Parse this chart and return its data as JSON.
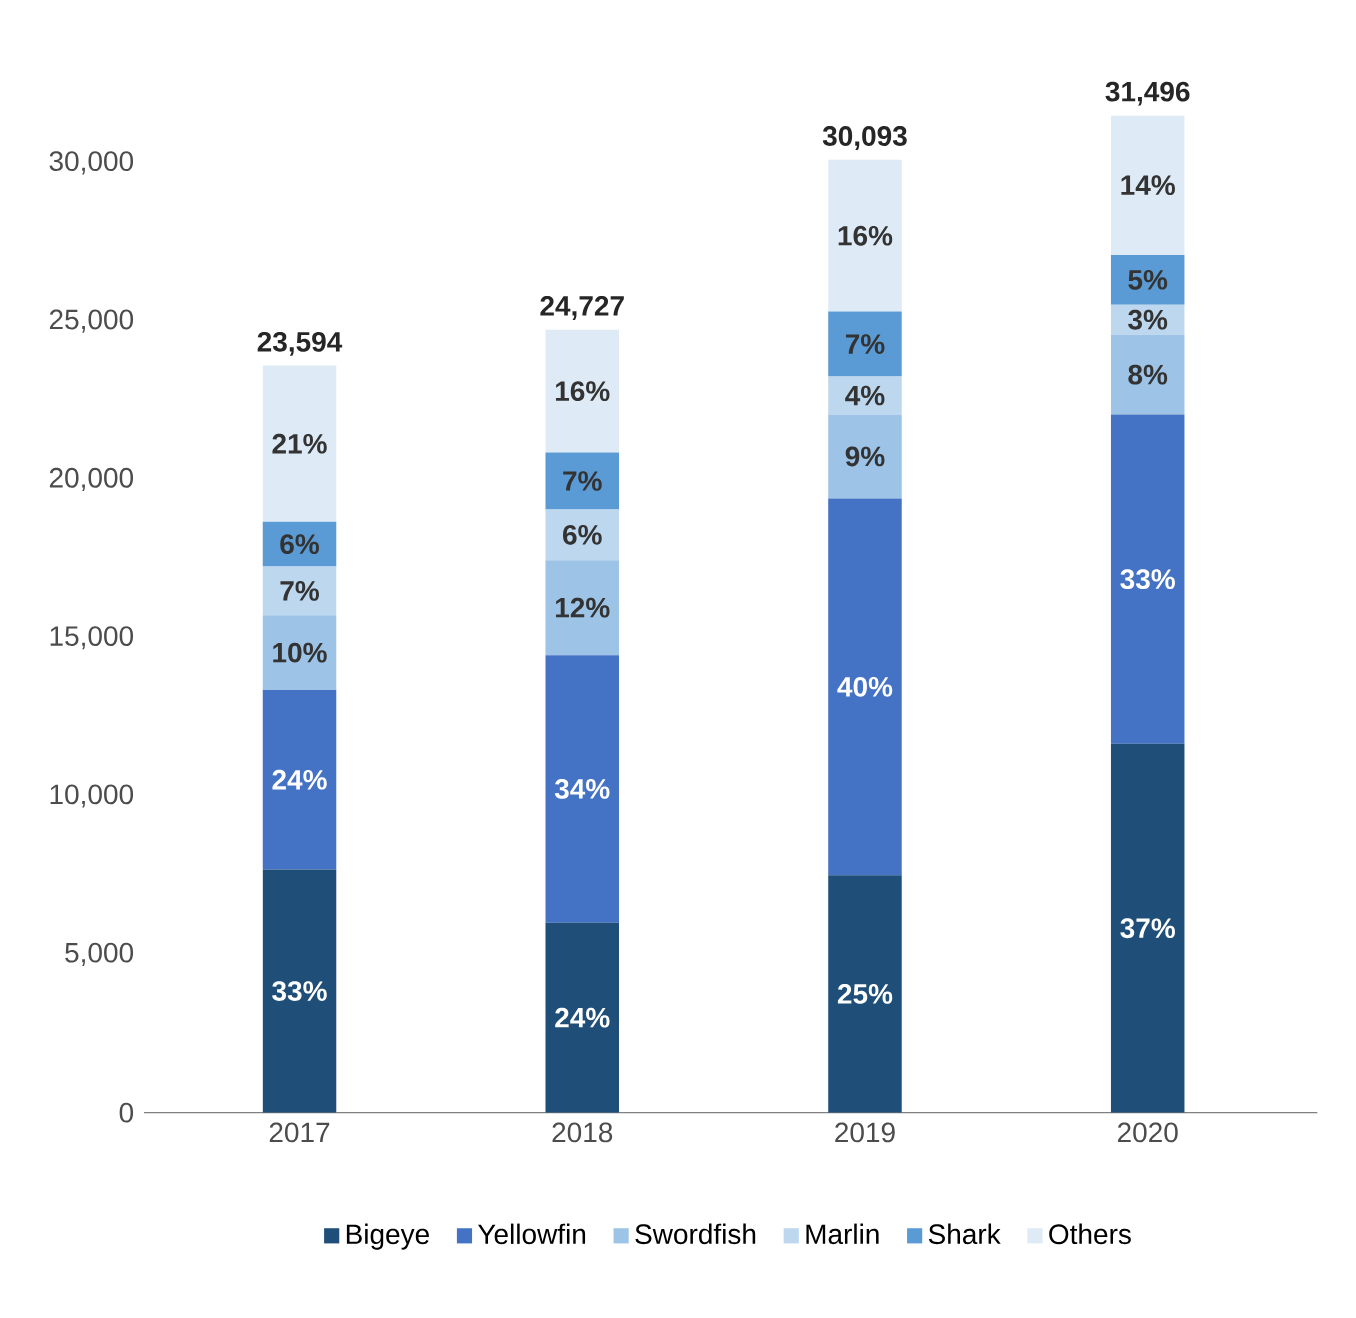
{
  "chart_data": {
    "type": "bar",
    "stacked": true,
    "categories": [
      "2017",
      "2018",
      "2019",
      "2020"
    ],
    "series": [
      {
        "name": "Bigeye",
        "color": "#1f4e79",
        "values": [
          7680,
          6000,
          7500,
          11650
        ]
      },
      {
        "name": "Yellowfin",
        "color": "#4472c4",
        "values": [
          5670,
          8450,
          11900,
          10400
        ]
      },
      {
        "name": "Swordfish",
        "color": "#9dc3e6",
        "values": [
          2360,
          3000,
          2650,
          2520
        ]
      },
      {
        "name": "Marlin",
        "color": "#bdd7ee",
        "values": [
          1540,
          1600,
          1200,
          950
        ]
      },
      {
        "name": "Shark",
        "color": "#5b9bd5",
        "values": [
          1410,
          1800,
          2050,
          1570
        ]
      },
      {
        "name": "Others",
        "color": "#deebf7",
        "values": [
          4934,
          3877,
          4793,
          4406
        ]
      }
    ],
    "annotations": [
      "33%",
      "24%",
      "25%",
      "37%",
      "24%",
      "34%",
      "40%",
      "33%",
      "10%",
      "12%",
      "9%",
      "8%",
      "7%",
      "6%",
      "4%",
      "3%",
      "6%",
      "7%",
      "7%",
      "5%",
      "21%",
      "16%",
      "16%",
      "14%"
    ],
    "totals": [
      "23,594",
      "24,727",
      "30,093",
      "31,496"
    ],
    "ylim": [
      0,
      31500
    ],
    "yticks": [
      {
        "value": 0,
        "label": "0"
      },
      {
        "value": 5000,
        "label": "5,000"
      },
      {
        "value": 10000,
        "label": "10,000"
      },
      {
        "value": 15000,
        "label": "15,000"
      },
      {
        "value": 20000,
        "label": "20,000"
      },
      {
        "value": 25000,
        "label": "25,000"
      },
      {
        "value": 30000,
        "label": "30,000"
      }
    ],
    "legend": "bottom",
    "grid": false
  }
}
